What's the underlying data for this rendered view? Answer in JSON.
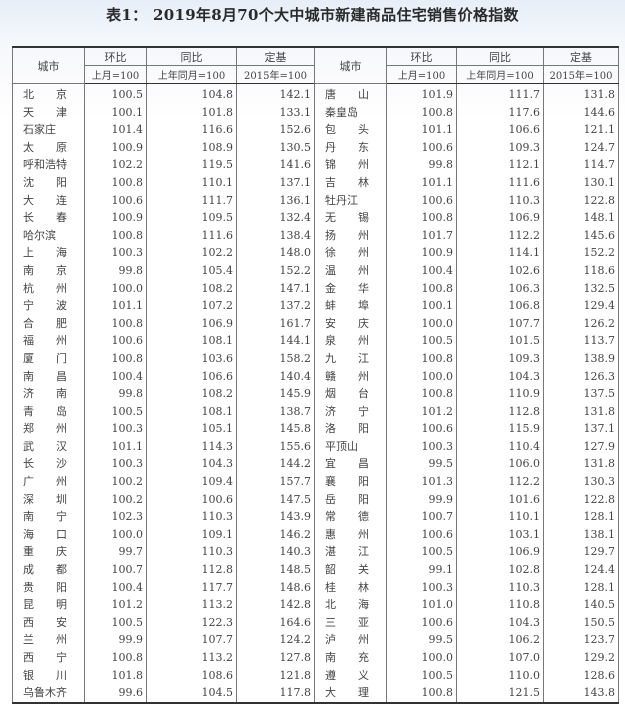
{
  "title": "表1： 2019年8月70个大中城市新建商品住宅销售价格指数",
  "headers": {
    "city": "城市",
    "mom": "环比",
    "yoy": "同比",
    "base": "定基",
    "mom_sub": "上月=100",
    "yoy_sub": "上年同月=100",
    "base_sub": "2015年=100"
  },
  "left_rows": [
    [
      "北　　京",
      "100.5",
      "104.8",
      "142.1"
    ],
    [
      "天　　津",
      "100.1",
      "101.8",
      "133.1"
    ],
    [
      "石家庄",
      "101.4",
      "116.6",
      "152.6"
    ],
    [
      "太　　原",
      "100.9",
      "108.9",
      "130.5"
    ],
    [
      "呼和浩特",
      "102.2",
      "119.5",
      "141.6"
    ],
    [
      "沈　　阳",
      "100.8",
      "110.1",
      "137.1"
    ],
    [
      "大　　连",
      "100.6",
      "111.7",
      "136.1"
    ],
    [
      "长　　春",
      "100.9",
      "109.5",
      "132.4"
    ],
    [
      "哈尔滨",
      "100.8",
      "111.6",
      "138.4"
    ],
    [
      "上　　海",
      "100.3",
      "102.2",
      "148.0"
    ],
    [
      "南　　京",
      "99.8",
      "105.4",
      "152.2"
    ],
    [
      "杭　　州",
      "100.0",
      "108.2",
      "147.1"
    ],
    [
      "宁　　波",
      "101.1",
      "107.2",
      "137.2"
    ],
    [
      "合　　肥",
      "100.8",
      "106.9",
      "161.7"
    ],
    [
      "福　　州",
      "100.6",
      "108.1",
      "144.1"
    ],
    [
      "厦　　门",
      "100.8",
      "103.6",
      "158.2"
    ],
    [
      "南　　昌",
      "100.4",
      "106.6",
      "140.4"
    ],
    [
      "济　　南",
      "99.8",
      "108.2",
      "145.9"
    ],
    [
      "青　　岛",
      "100.5",
      "108.1",
      "138.7"
    ],
    [
      "郑　　州",
      "100.3",
      "105.1",
      "145.8"
    ],
    [
      "武　　汉",
      "101.1",
      "114.3",
      "155.6"
    ],
    [
      "长　　沙",
      "100.3",
      "104.3",
      "144.2"
    ],
    [
      "广　　州",
      "100.2",
      "109.4",
      "157.7"
    ],
    [
      "深　　圳",
      "100.2",
      "100.6",
      "147.5"
    ],
    [
      "南　　宁",
      "102.3",
      "110.3",
      "143.9"
    ],
    [
      "海　　口",
      "100.0",
      "109.1",
      "146.2"
    ],
    [
      "重　　庆",
      "99.7",
      "110.3",
      "140.3"
    ],
    [
      "成　　都",
      "100.7",
      "112.8",
      "148.5"
    ],
    [
      "贵　　阳",
      "100.4",
      "117.7",
      "148.6"
    ],
    [
      "昆　　明",
      "101.2",
      "113.2",
      "142.8"
    ],
    [
      "西　　安",
      "100.5",
      "122.3",
      "164.6"
    ],
    [
      "兰　　州",
      "99.9",
      "107.7",
      "124.2"
    ],
    [
      "西　　宁",
      "100.8",
      "113.2",
      "127.8"
    ],
    [
      "银　　川",
      "101.8",
      "108.6",
      "121.8"
    ],
    [
      "乌鲁木齐",
      "99.6",
      "104.5",
      "117.8"
    ]
  ],
  "right_rows": [
    [
      "唐　　山",
      "101.9",
      "111.7",
      "131.8"
    ],
    [
      "秦皇岛",
      "100.8",
      "117.6",
      "144.6"
    ],
    [
      "包　　头",
      "101.1",
      "106.6",
      "121.1"
    ],
    [
      "丹　　东",
      "100.6",
      "109.3",
      "124.7"
    ],
    [
      "锦　　州",
      "99.8",
      "112.1",
      "114.7"
    ],
    [
      "吉　　林",
      "101.1",
      "111.6",
      "130.1"
    ],
    [
      "牡丹江",
      "100.6",
      "110.3",
      "122.8"
    ],
    [
      "无　　锡",
      "100.8",
      "106.9",
      "148.1"
    ],
    [
      "扬　　州",
      "101.7",
      "112.2",
      "145.6"
    ],
    [
      "徐　　州",
      "100.9",
      "114.1",
      "152.2"
    ],
    [
      "温　　州",
      "100.4",
      "102.6",
      "118.6"
    ],
    [
      "金　　华",
      "100.8",
      "106.3",
      "132.5"
    ],
    [
      "蚌　　埠",
      "100.1",
      "106.8",
      "129.4"
    ],
    [
      "安　　庆",
      "100.0",
      "107.7",
      "126.2"
    ],
    [
      "泉　　州",
      "100.5",
      "101.5",
      "113.7"
    ],
    [
      "九　　江",
      "100.8",
      "109.3",
      "138.9"
    ],
    [
      "赣　　州",
      "100.0",
      "104.3",
      "126.3"
    ],
    [
      "烟　　台",
      "100.8",
      "110.9",
      "137.5"
    ],
    [
      "济　　宁",
      "101.2",
      "112.8",
      "131.8"
    ],
    [
      "洛　　阳",
      "100.6",
      "115.9",
      "137.1"
    ],
    [
      "平顶山",
      "100.3",
      "110.4",
      "127.9"
    ],
    [
      "宜　　昌",
      "99.5",
      "106.0",
      "131.8"
    ],
    [
      "襄　　阳",
      "101.3",
      "112.2",
      "130.3"
    ],
    [
      "岳　　阳",
      "99.9",
      "101.6",
      "122.8"
    ],
    [
      "常　　德",
      "100.7",
      "110.1",
      "128.1"
    ],
    [
      "惠　　州",
      "100.6",
      "103.1",
      "138.1"
    ],
    [
      "湛　　江",
      "100.5",
      "106.9",
      "129.7"
    ],
    [
      "韶　　关",
      "99.1",
      "102.8",
      "124.4"
    ],
    [
      "桂　　林",
      "100.3",
      "110.3",
      "128.1"
    ],
    [
      "北　　海",
      "101.0",
      "110.8",
      "140.5"
    ],
    [
      "三　　亚",
      "100.6",
      "104.3",
      "150.5"
    ],
    [
      "泸　　州",
      "99.5",
      "106.2",
      "123.7"
    ],
    [
      "南　　充",
      "100.0",
      "107.0",
      "129.2"
    ],
    [
      "遵　　义",
      "100.5",
      "110.0",
      "128.6"
    ],
    [
      "大　　理",
      "100.8",
      "121.5",
      "143.8"
    ]
  ]
}
